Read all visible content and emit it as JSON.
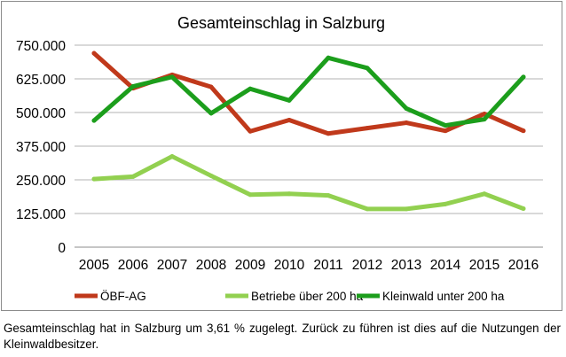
{
  "chart_data": {
    "type": "line",
    "title": "Gesamteinschlag in Salzburg",
    "xlabel": "",
    "ylabel": "",
    "categories": [
      "2005",
      "2006",
      "2007",
      "2008",
      "2009",
      "2010",
      "2011",
      "2012",
      "2013",
      "2014",
      "2015",
      "2016"
    ],
    "ylim": [
      0,
      750000
    ],
    "yticks": [
      0,
      125000,
      250000,
      375000,
      500000,
      625000,
      750000
    ],
    "ytick_labels": [
      "0",
      "125.000",
      "250.000",
      "375.000",
      "500.000",
      "625.000",
      "750.000"
    ],
    "grid": true,
    "legend_position": "bottom",
    "series": [
      {
        "name": "ÖBF-AG",
        "color": "#c0391b",
        "values": [
          720000,
          590000,
          640000,
          595000,
          430000,
          472000,
          422000,
          442000,
          462000,
          432000,
          495000,
          432000
        ]
      },
      {
        "name": "Betriebe über 200 ha",
        "color": "#92d050",
        "values": [
          253000,
          262000,
          337000,
          265000,
          195000,
          198000,
          192000,
          142000,
          142000,
          160000,
          198000,
          143000
        ]
      },
      {
        "name": "Kleinwald unter 200 ha",
        "color": "#1c9e1c",
        "values": [
          470000,
          597000,
          632000,
          497000,
          588000,
          545000,
          703000,
          665000,
          515000,
          452000,
          475000,
          632000
        ]
      }
    ]
  },
  "caption": "Gesamteinschlag hat in Salzburg um 3,61 % zugelegt. Zurück zu führen ist dies auf die Nutzungen der Kleinwaldbesitzer."
}
